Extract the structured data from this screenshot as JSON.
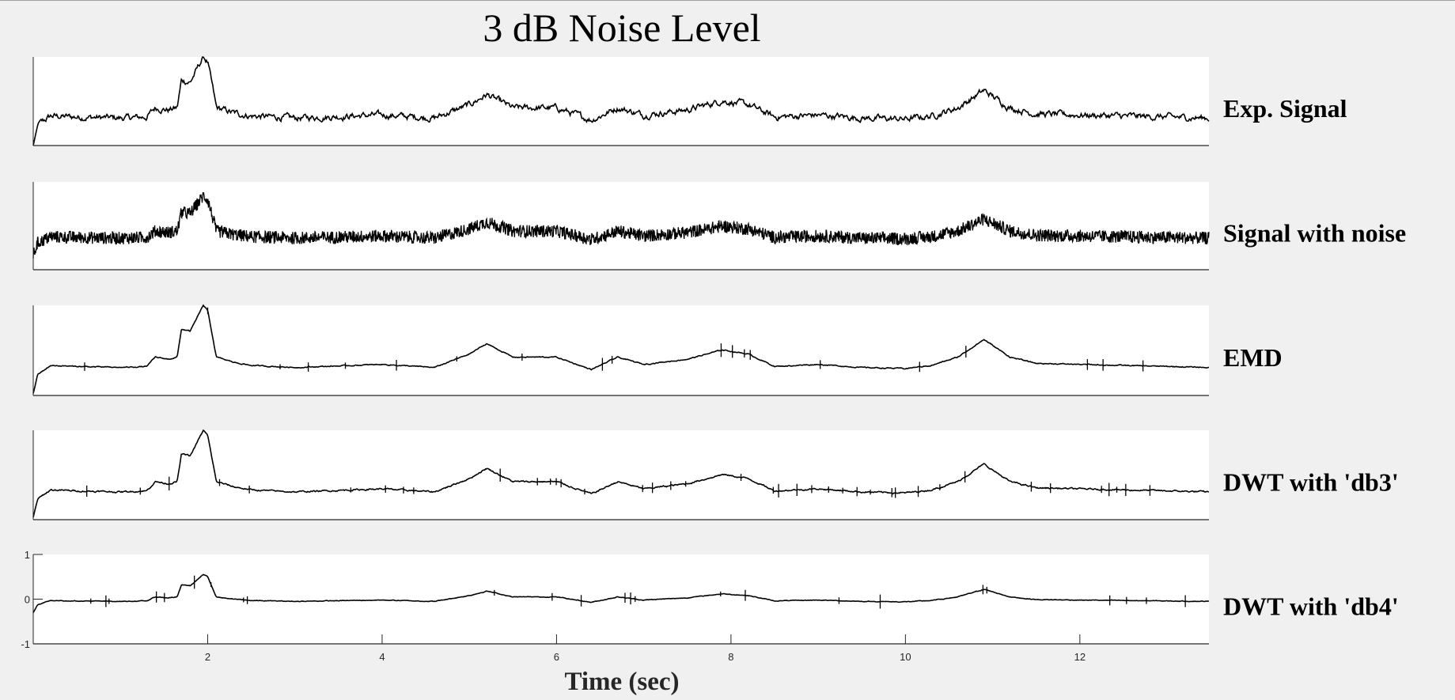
{
  "chart_data": {
    "type": "line",
    "title": "3 dB Noise Level",
    "xlabel": "Time (sec)",
    "xlim": [
      0,
      13.48
    ],
    "xticks": [
      2,
      4,
      6,
      8,
      10,
      12
    ],
    "xtick_labels": [
      "2",
      "4",
      "6",
      "8",
      "10",
      "12"
    ],
    "grid": false,
    "underlying_shape": {
      "x": [
        0,
        0.05,
        0.2,
        0.5,
        1.0,
        1.3,
        1.4,
        1.55,
        1.65,
        1.7,
        1.8,
        1.95,
        2.0,
        2.1,
        2.3,
        2.5,
        3,
        4,
        4.6,
        5.0,
        5.2,
        5.5,
        6.0,
        6.4,
        6.7,
        7.0,
        7.5,
        7.9,
        8.2,
        8.5,
        9,
        9.5,
        10,
        10.3,
        10.6,
        10.9,
        11.2,
        11.5,
        12,
        13,
        13.48
      ],
      "y": [
        -0.3,
        -0.12,
        -0.03,
        -0.04,
        -0.05,
        -0.04,
        0.05,
        0.03,
        0.05,
        0.32,
        0.3,
        0.55,
        0.5,
        0.05,
        0.0,
        -0.03,
        -0.05,
        -0.02,
        -0.05,
        0.08,
        0.18,
        0.05,
        0.05,
        -0.07,
        0.05,
        -0.02,
        0.03,
        0.12,
        0.08,
        -0.04,
        -0.02,
        -0.05,
        -0.06,
        -0.03,
        0.05,
        0.22,
        0.05,
        -0.01,
        -0.02,
        -0.04,
        -0.05
      ]
    },
    "series": [
      {
        "name": "Exp. Signal",
        "ylim": [
          -0.32,
          0.55
        ],
        "noise": 0.025,
        "spikes": 0,
        "show_yticks": false
      },
      {
        "name": "Signal with noise",
        "ylim": [
          -0.5,
          0.75
        ],
        "noise": 0.09,
        "spikes": 0,
        "show_yticks": false
      },
      {
        "name": "EMD",
        "ylim": [
          -0.32,
          0.55
        ],
        "noise": 0.004,
        "spikes": 20,
        "show_yticks": false
      },
      {
        "name": "DWT with 'db3'",
        "ylim": [
          -0.32,
          0.55
        ],
        "noise": 0.006,
        "spikes": 40,
        "show_yticks": false
      },
      {
        "name": "DWT with 'db4'",
        "ylim": [
          -1,
          1
        ],
        "noise": 0.006,
        "spikes": 25,
        "show_yticks": true,
        "yticks": [
          -1,
          0,
          1
        ],
        "ytick_labels": [
          "-1",
          "0",
          "1"
        ]
      }
    ]
  }
}
